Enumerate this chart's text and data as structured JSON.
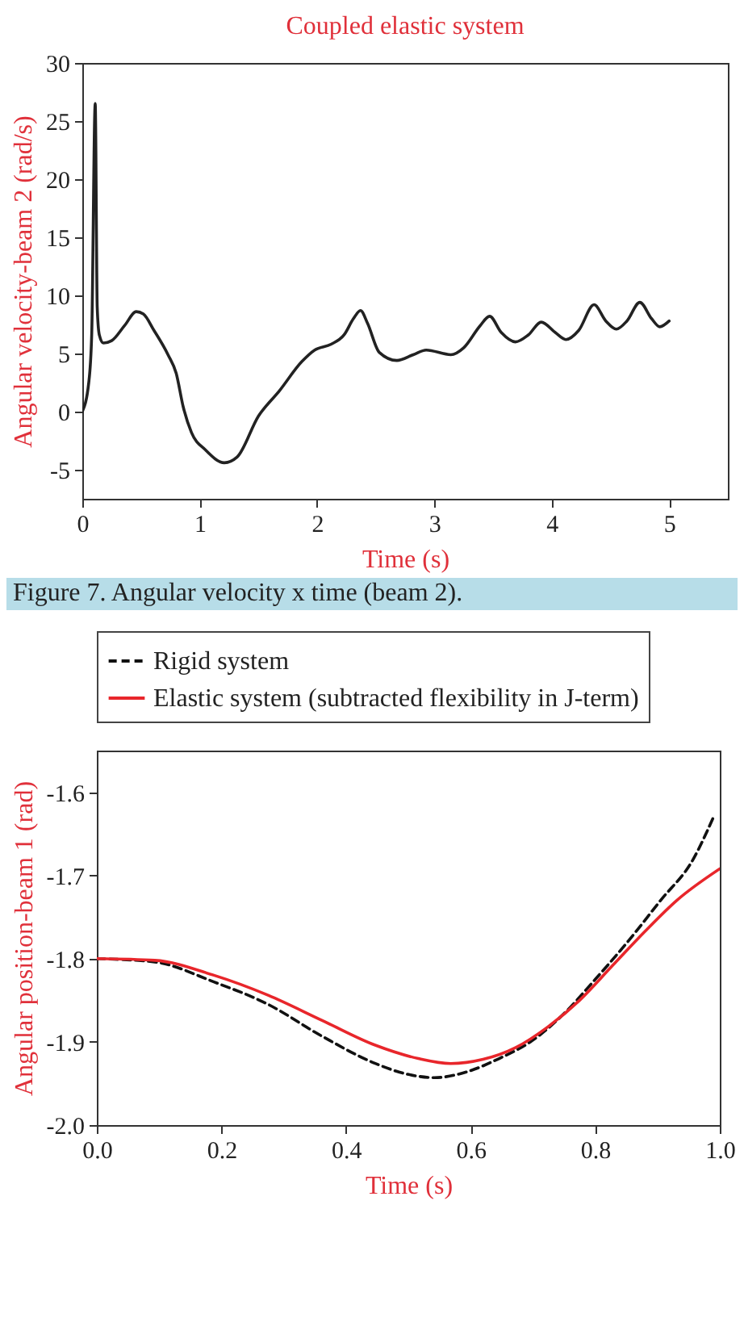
{
  "chart_data": [
    {
      "type": "line",
      "title": "Coupled elastic system",
      "xlabel": "Time (s)",
      "ylabel": "Angular velocity-beam 2 (rad/s)",
      "annotations": [
        "Figure 7. Angular velocity x time (beam 2)."
      ],
      "xlim": [
        0,
        5.5
      ],
      "ylim": [
        -7.5,
        30
      ],
      "xticks": [
        0,
        1,
        2,
        3,
        4,
        5
      ],
      "yticks": [
        -5,
        0,
        5,
        10,
        15,
        20,
        25,
        30
      ],
      "grid": false,
      "legend": false,
      "series": [
        {
          "color": "#222222",
          "line_style": "solid",
          "x": [
            0,
            0.055,
            0.08,
            0.11,
            0.127,
            0.145,
            0.18,
            0.25,
            0.36,
            0.46,
            0.52,
            0.61,
            0.73,
            0.8,
            0.86,
            0.93,
            1.05,
            1.21,
            1.32,
            1.5,
            1.68,
            1.87,
            1.98,
            2.12,
            2.23,
            2.31,
            2.37,
            2.43,
            2.53,
            2.68,
            2.82,
            2.93,
            3.14,
            3.25,
            3.39,
            3.47,
            3.57,
            3.69,
            3.8,
            3.91,
            4.03,
            4.12,
            4.23,
            4.36,
            4.46,
            4.55,
            4.64,
            4.75,
            4.85,
            4.92,
            5.0
          ],
          "values": [
            0,
            2.5,
            6.6,
            26.5,
            9,
            6.6,
            5.9,
            6.1,
            7.4,
            8.6,
            8.4,
            7.0,
            4.9,
            3.3,
            0.4,
            -1.8,
            -3.3,
            -4.4,
            -3.9,
            -0.4,
            1.8,
            4.3,
            5.3,
            5.8,
            6.6,
            8.0,
            8.7,
            7.6,
            5.1,
            4.4,
            4.9,
            5.3,
            4.9,
            5.5,
            7.4,
            8.2,
            6.8,
            6.0,
            6.6,
            7.7,
            6.8,
            6.2,
            7.0,
            9.2,
            7.8,
            7.1,
            7.8,
            9.4,
            8.0,
            7.3,
            7.8
          ]
        }
      ]
    },
    {
      "type": "line",
      "xlabel": "Time (s)",
      "ylabel": "Angular position-beam 1 (rad)",
      "xlim": [
        0,
        1
      ],
      "ylim": [
        -2,
        -1.55
      ],
      "xticks": [
        {
          "value": 0,
          "label": "0.0"
        },
        0.2,
        0.4,
        0.6,
        0.8,
        {
          "value": 1,
          "label": "1.0"
        }
      ],
      "yticks": [
        {
          "value": -2,
          "label": "-2.0"
        },
        -1.9,
        -1.8,
        -1.7,
        -1.6
      ],
      "grid": false,
      "legend": "top",
      "series": [
        {
          "name": "Rigid system",
          "color": "#111111",
          "line_style": "dashed",
          "x": [
            0,
            0.093,
            0.188,
            0.275,
            0.361,
            0.447,
            0.499,
            0.542,
            0.594,
            0.646,
            0.698,
            0.75,
            0.8,
            0.853,
            0.905,
            0.957,
            0.991
          ],
          "values": [
            -1.8,
            -1.804,
            -1.828,
            -1.855,
            -1.893,
            -1.926,
            -1.939,
            -1.943,
            -1.936,
            -1.92,
            -1.899,
            -1.866,
            -1.825,
            -1.779,
            -1.73,
            -1.681,
            -1.628
          ]
        },
        {
          "name": "Elastic system (subtracted flexibility in J-term)",
          "color": "#e8262b",
          "line_style": "solid",
          "x": [
            0,
            0.093,
            0.188,
            0.275,
            0.361,
            0.447,
            0.516,
            0.568,
            0.62,
            0.672,
            0.724,
            0.775,
            0.827,
            0.879,
            0.931,
            1.0
          ],
          "values": [
            -1.8,
            -1.802,
            -1.82,
            -1.844,
            -1.874,
            -1.904,
            -1.92,
            -1.926,
            -1.921,
            -1.907,
            -1.882,
            -1.85,
            -1.809,
            -1.768,
            -1.73,
            -1.692
          ]
        }
      ]
    }
  ]
}
